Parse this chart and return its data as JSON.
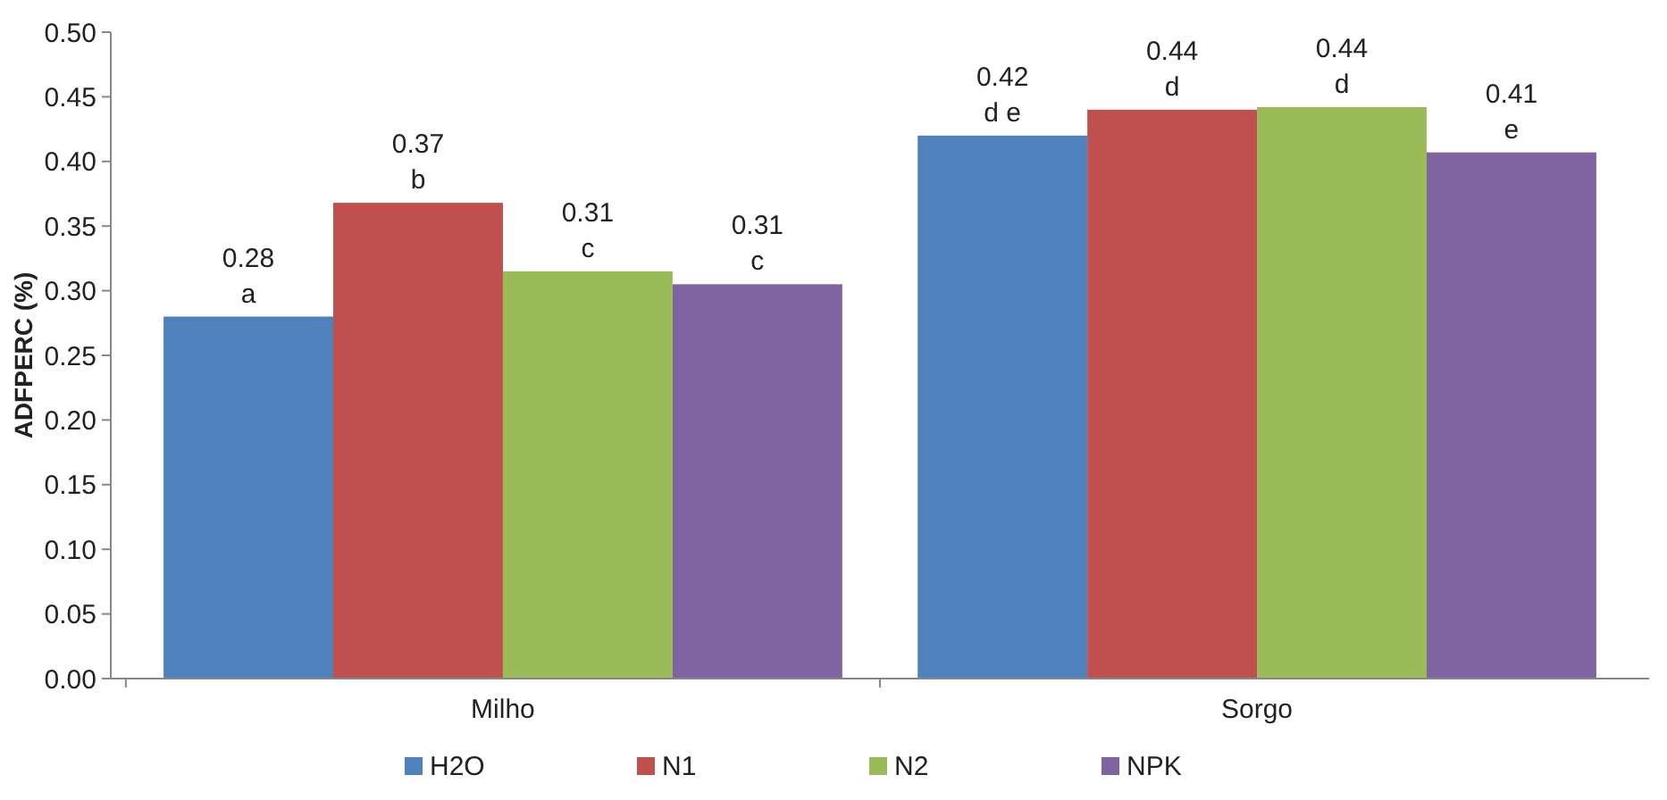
{
  "chart_data": {
    "type": "bar",
    "ylabel": "ADFPERC (%)",
    "categories": [
      "Milho",
      "Sorgo"
    ],
    "series": [
      {
        "name": "H2O",
        "color": "#4f81bd",
        "values": [
          0.28,
          0.42
        ],
        "value_labels": [
          "0.28\na",
          "0.42\nd e"
        ]
      },
      {
        "name": "N1",
        "color": "#c0504d",
        "values": [
          0.368,
          0.44
        ],
        "value_labels": [
          "0.37\nb",
          "0.44\nd"
        ]
      },
      {
        "name": "N2",
        "color": "#9bbb59",
        "values": [
          0.315,
          0.442
        ],
        "value_labels": [
          "0.31\nc",
          "0.44\nd"
        ]
      },
      {
        "name": "NPK",
        "color": "#8064a2",
        "values": [
          0.305,
          0.407
        ],
        "value_labels": [
          "0.31\nc",
          "0.41\ne"
        ]
      }
    ],
    "ylim": [
      0,
      0.5
    ],
    "yticks": [
      {
        "value": 0,
        "label": "0.00"
      },
      {
        "value": 0.05,
        "label": "0.05"
      },
      {
        "value": 0.1,
        "label": "0.10"
      },
      {
        "value": 0.15,
        "label": "0.15"
      },
      {
        "value": 0.2,
        "label": "0.20"
      },
      {
        "value": 0.25,
        "label": "0.25"
      },
      {
        "value": 0.3,
        "label": "0.30"
      },
      {
        "value": 0.35,
        "label": "0.35"
      },
      {
        "value": 0.4,
        "label": "0.40"
      },
      {
        "value": 0.45,
        "label": "0.45"
      },
      {
        "value": 0.5,
        "label": "0.50"
      }
    ],
    "legend": "bottom"
  }
}
